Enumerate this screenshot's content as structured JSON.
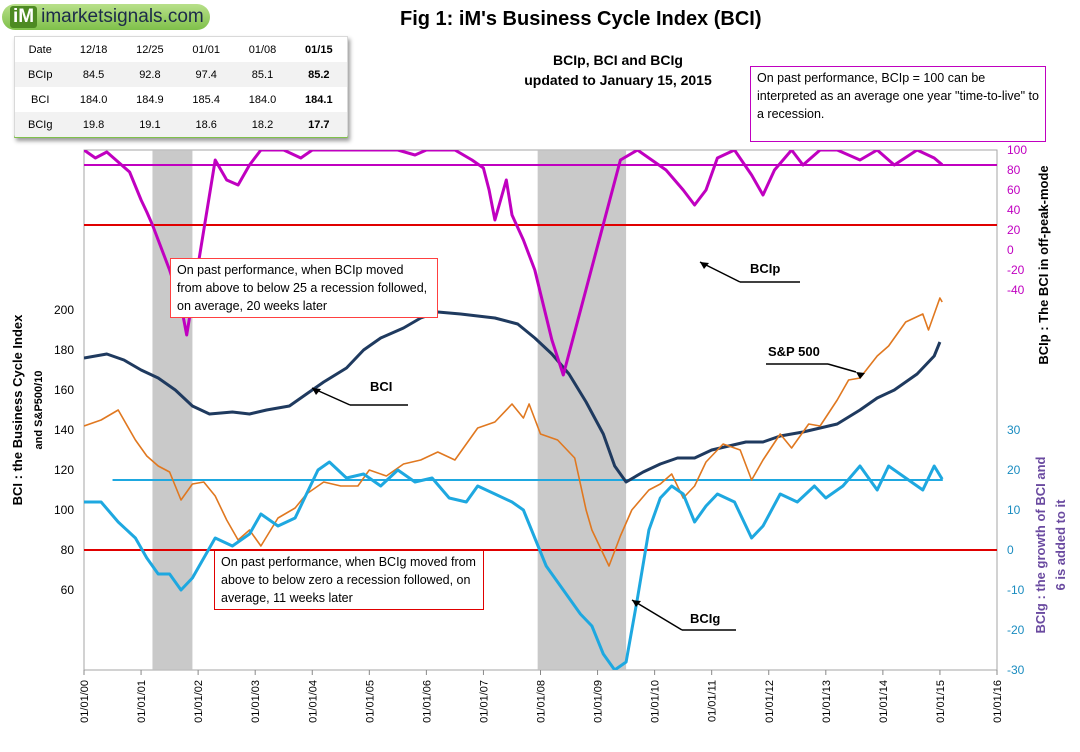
{
  "brand": {
    "mark": "iM",
    "name": "imarketsignals.com"
  },
  "figure": {
    "title": "Fig 1:  iM's Business Cycle Index (BCI)",
    "subtitle_line1": "BCIp, BCI and BCIg",
    "subtitle_line2": "updated to January 15, 2015"
  },
  "table": {
    "headers": [
      "Date",
      "12/18",
      "12/25",
      "01/01",
      "01/08",
      "01/15"
    ],
    "rows": [
      [
        "BCIp",
        "84.5",
        "92.8",
        "97.4",
        "85.1",
        "85.2"
      ],
      [
        "BCI",
        "184.0",
        "184.9",
        "185.4",
        "184.0",
        "184.1"
      ],
      [
        "BCIg",
        "19.8",
        "19.1",
        "18.6",
        "18.2",
        "17.7"
      ]
    ]
  },
  "notes": {
    "top": "On past performance, BCIp = 100 can be interpreted as an average one year \"time-to-live\" to a recession.",
    "bcip": "On past performance,  when BCIp moved from above to below 25 a recession followed, on average, 20 weeks later",
    "bcig": "On past performance,  when BCIg moved from above to below zero a recession followed, on average, 11 weeks later"
  },
  "colors": {
    "bci": "#1f3a5f",
    "sp500": "#e07820",
    "bcig": "#1ea8e0",
    "bcip": "#c000c0",
    "recession": "#bfbfbf",
    "redline": "#e00000",
    "bcig_ref": "#1ea8e0",
    "bcip_ref": "#c000c0"
  },
  "chart_data": {
    "type": "line",
    "x_axis": {
      "ticks": [
        "01/01/00",
        "01/01/01",
        "01/01/02",
        "01/01/03",
        "01/01/04",
        "01/01/05",
        "01/01/06",
        "01/01/07",
        "01/01/08",
        "01/01/09",
        "01/01/10",
        "01/01/11",
        "01/01/12",
        "01/01/13",
        "01/01/14",
        "01/01/15",
        "01/01/16"
      ],
      "range": [
        2000,
        2016
      ]
    },
    "left_axis": {
      "label_line1": "BCI : the Business Cycle Index",
      "label_line2": "and  S&P500/10",
      "ticks": [
        60,
        80,
        100,
        120,
        140,
        160,
        180,
        200
      ]
    },
    "right_axis_bcip": {
      "label": "BCIp :  The BCI in off-peak-mode",
      "ticks": [
        100,
        80,
        60,
        40,
        20,
        0,
        -20,
        -40
      ]
    },
    "right_axis_bcig": {
      "label_line1": "BCIg : the growth of BCI and",
      "label_line2": "6 is added to it",
      "ticks": [
        30,
        20,
        10,
        0,
        -10,
        -20,
        -30
      ]
    },
    "recessions": [
      [
        2001.2,
        2001.9
      ],
      [
        2007.95,
        2009.5
      ]
    ],
    "reference_lines": {
      "bcip": 85,
      "bcip_threshold": 25,
      "bcig_threshold": 0,
      "bcig_level": 17.5
    },
    "labels": {
      "bci": "BCI",
      "sp500": "S&P 500",
      "bcip": "BCIp",
      "bcig": "BCIg"
    },
    "series": [
      {
        "name": "BCI",
        "points": [
          [
            2000.0,
            176
          ],
          [
            2000.4,
            178
          ],
          [
            2000.7,
            175
          ],
          [
            2001.0,
            170
          ],
          [
            2001.3,
            166
          ],
          [
            2001.6,
            160
          ],
          [
            2001.9,
            152
          ],
          [
            2002.2,
            148
          ],
          [
            2002.6,
            149
          ],
          [
            2002.9,
            148
          ],
          [
            2003.2,
            150
          ],
          [
            2003.6,
            152
          ],
          [
            2003.9,
            158
          ],
          [
            2004.2,
            164
          ],
          [
            2004.6,
            171
          ],
          [
            2004.9,
            180
          ],
          [
            2005.2,
            186
          ],
          [
            2005.6,
            191
          ],
          [
            2005.9,
            196
          ],
          [
            2006.2,
            199
          ],
          [
            2006.6,
            198
          ],
          [
            2006.9,
            197
          ],
          [
            2007.2,
            196
          ],
          [
            2007.6,
            193
          ],
          [
            2007.9,
            186
          ],
          [
            2008.2,
            178
          ],
          [
            2008.5,
            168
          ],
          [
            2008.8,
            154
          ],
          [
            2009.1,
            138
          ],
          [
            2009.3,
            122
          ],
          [
            2009.5,
            114
          ],
          [
            2009.8,
            119
          ],
          [
            2010.1,
            123
          ],
          [
            2010.4,
            126
          ],
          [
            2010.7,
            126
          ],
          [
            2011.0,
            130
          ],
          [
            2011.3,
            132
          ],
          [
            2011.6,
            134
          ],
          [
            2011.9,
            134
          ],
          [
            2012.2,
            137
          ],
          [
            2012.6,
            139
          ],
          [
            2012.9,
            141
          ],
          [
            2013.2,
            143
          ],
          [
            2013.6,
            150
          ],
          [
            2013.9,
            156
          ],
          [
            2014.2,
            160
          ],
          [
            2014.6,
            168
          ],
          [
            2014.9,
            177
          ],
          [
            2015.0,
            184
          ]
        ]
      },
      {
        "name": "S&P 500",
        "points": [
          [
            2000.0,
            142
          ],
          [
            2000.3,
            145
          ],
          [
            2000.6,
            150
          ],
          [
            2000.9,
            135
          ],
          [
            2001.1,
            127
          ],
          [
            2001.3,
            122
          ],
          [
            2001.5,
            119
          ],
          [
            2001.7,
            105
          ],
          [
            2001.9,
            113
          ],
          [
            2002.1,
            114
          ],
          [
            2002.3,
            107
          ],
          [
            2002.5,
            95
          ],
          [
            2002.7,
            85
          ],
          [
            2002.9,
            90
          ],
          [
            2003.1,
            82
          ],
          [
            2003.4,
            96
          ],
          [
            2003.7,
            101
          ],
          [
            2003.9,
            108
          ],
          [
            2004.2,
            114
          ],
          [
            2004.5,
            112
          ],
          [
            2004.8,
            112
          ],
          [
            2005.0,
            120
          ],
          [
            2005.3,
            117
          ],
          [
            2005.6,
            123
          ],
          [
            2005.9,
            125
          ],
          [
            2006.2,
            129
          ],
          [
            2006.5,
            125
          ],
          [
            2006.8,
            137
          ],
          [
            2006.9,
            141
          ],
          [
            2007.2,
            144
          ],
          [
            2007.5,
            153
          ],
          [
            2007.7,
            146
          ],
          [
            2007.8,
            153
          ],
          [
            2008.0,
            138
          ],
          [
            2008.3,
            135
          ],
          [
            2008.6,
            126
          ],
          [
            2008.8,
            100
          ],
          [
            2008.9,
            90
          ],
          [
            2009.2,
            72
          ],
          [
            2009.4,
            87
          ],
          [
            2009.6,
            100
          ],
          [
            2009.9,
            110
          ],
          [
            2010.1,
            113
          ],
          [
            2010.3,
            118
          ],
          [
            2010.5,
            106
          ],
          [
            2010.7,
            112
          ],
          [
            2010.9,
            124
          ],
          [
            2011.2,
            133
          ],
          [
            2011.5,
            130
          ],
          [
            2011.7,
            115
          ],
          [
            2011.9,
            125
          ],
          [
            2012.2,
            138
          ],
          [
            2012.4,
            131
          ],
          [
            2012.7,
            143
          ],
          [
            2012.9,
            142
          ],
          [
            2013.2,
            155
          ],
          [
            2013.4,
            165
          ],
          [
            2013.6,
            166
          ],
          [
            2013.9,
            177
          ],
          [
            2014.1,
            182
          ],
          [
            2014.4,
            194
          ],
          [
            2014.7,
            198
          ],
          [
            2014.8,
            190
          ],
          [
            2015.0,
            206
          ],
          [
            2015.04,
            204
          ]
        ]
      },
      {
        "name": "BCIg",
        "points": [
          [
            2000.0,
            12
          ],
          [
            2000.3,
            12
          ],
          [
            2000.6,
            7
          ],
          [
            2000.9,
            3
          ],
          [
            2001.1,
            -2
          ],
          [
            2001.3,
            -6
          ],
          [
            2001.5,
            -6
          ],
          [
            2001.7,
            -10
          ],
          [
            2001.9,
            -7
          ],
          [
            2002.1,
            -2
          ],
          [
            2002.3,
            3
          ],
          [
            2002.6,
            1
          ],
          [
            2002.9,
            4
          ],
          [
            2003.1,
            9
          ],
          [
            2003.4,
            6
          ],
          [
            2003.7,
            8
          ],
          [
            2003.9,
            14
          ],
          [
            2004.1,
            20
          ],
          [
            2004.3,
            22
          ],
          [
            2004.6,
            18
          ],
          [
            2004.9,
            19
          ],
          [
            2005.2,
            16
          ],
          [
            2005.5,
            20
          ],
          [
            2005.8,
            17
          ],
          [
            2006.1,
            18
          ],
          [
            2006.4,
            13
          ],
          [
            2006.7,
            12
          ],
          [
            2006.9,
            16
          ],
          [
            2007.2,
            14
          ],
          [
            2007.5,
            12
          ],
          [
            2007.7,
            10
          ],
          [
            2007.9,
            3
          ],
          [
            2008.1,
            -4
          ],
          [
            2008.4,
            -10
          ],
          [
            2008.7,
            -16
          ],
          [
            2008.9,
            -19
          ],
          [
            2009.1,
            -26
          ],
          [
            2009.3,
            -30
          ],
          [
            2009.5,
            -28
          ],
          [
            2009.7,
            -12
          ],
          [
            2009.9,
            5
          ],
          [
            2010.1,
            13
          ],
          [
            2010.3,
            16
          ],
          [
            2010.5,
            14
          ],
          [
            2010.7,
            7
          ],
          [
            2010.9,
            11
          ],
          [
            2011.1,
            14
          ],
          [
            2011.4,
            12
          ],
          [
            2011.7,
            3
          ],
          [
            2011.9,
            6
          ],
          [
            2012.2,
            14
          ],
          [
            2012.5,
            12
          ],
          [
            2012.8,
            16
          ],
          [
            2013.0,
            13
          ],
          [
            2013.3,
            16
          ],
          [
            2013.6,
            21
          ],
          [
            2013.9,
            15
          ],
          [
            2014.1,
            21
          ],
          [
            2014.4,
            18
          ],
          [
            2014.7,
            15
          ],
          [
            2014.9,
            21
          ],
          [
            2015.04,
            17.7
          ]
        ]
      },
      {
        "name": "BCIp",
        "points": [
          [
            2000.0,
            100
          ],
          [
            2000.2,
            92
          ],
          [
            2000.4,
            98
          ],
          [
            2000.6,
            88
          ],
          [
            2000.8,
            78
          ],
          [
            2001.0,
            50
          ],
          [
            2001.1,
            38
          ],
          [
            2001.2,
            25
          ],
          [
            2001.3,
            10
          ],
          [
            2001.5,
            -20
          ],
          [
            2001.7,
            -55
          ],
          [
            2001.8,
            -85
          ],
          [
            2002.3,
            90
          ],
          [
            2002.5,
            70
          ],
          [
            2002.7,
            65
          ],
          [
            2002.9,
            85
          ],
          [
            2003.1,
            100
          ],
          [
            2003.5,
            100
          ],
          [
            2003.8,
            92
          ],
          [
            2004.0,
            100
          ],
          [
            2004.5,
            100
          ],
          [
            2005.0,
            100
          ],
          [
            2005.5,
            100
          ],
          [
            2005.8,
            95
          ],
          [
            2006.0,
            100
          ],
          [
            2006.5,
            100
          ],
          [
            2006.8,
            90
          ],
          [
            2007.0,
            82
          ],
          [
            2007.1,
            60
          ],
          [
            2007.2,
            30
          ],
          [
            2007.4,
            70
          ],
          [
            2007.5,
            35
          ],
          [
            2007.7,
            10
          ],
          [
            2007.9,
            -20
          ],
          [
            2008.2,
            -90
          ],
          [
            2008.4,
            -125
          ],
          [
            2009.4,
            90
          ],
          [
            2009.7,
            100
          ],
          [
            2010.2,
            80
          ],
          [
            2010.5,
            60
          ],
          [
            2010.7,
            45
          ],
          [
            2010.9,
            60
          ],
          [
            2011.1,
            92
          ],
          [
            2011.4,
            100
          ],
          [
            2011.7,
            75
          ],
          [
            2011.9,
            55
          ],
          [
            2012.1,
            80
          ],
          [
            2012.4,
            100
          ],
          [
            2012.6,
            85
          ],
          [
            2012.9,
            100
          ],
          [
            2013.2,
            100
          ],
          [
            2013.6,
            90
          ],
          [
            2013.9,
            100
          ],
          [
            2014.2,
            85
          ],
          [
            2014.6,
            100
          ],
          [
            2014.9,
            92
          ],
          [
            2015.04,
            85.2
          ]
        ]
      }
    ]
  }
}
